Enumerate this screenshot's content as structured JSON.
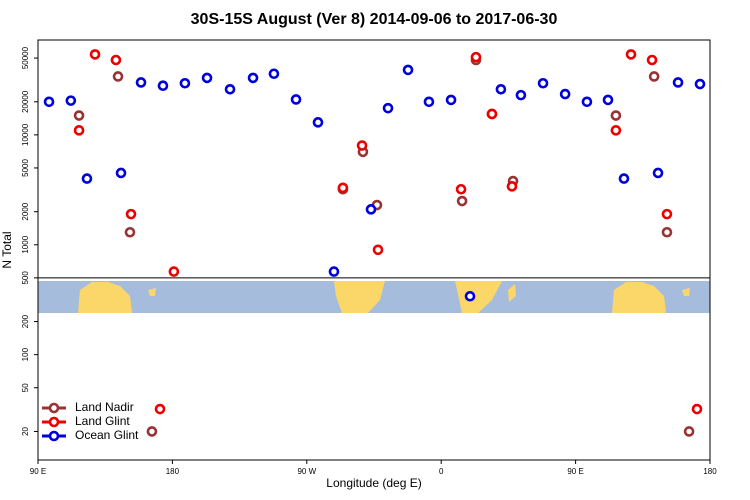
{
  "chart_data": {
    "type": "scatter",
    "title": "30S-15S August (Ver 8)   2014-09-06 to 2017-06-30",
    "x_label": "Longitude (deg E)",
    "y_label": "N Total",
    "log_y": true,
    "legend": "bottom-left",
    "xlim": [
      90,
      540
    ],
    "ylim": [
      11,
      73000
    ],
    "xticks": [
      {
        "value": 90,
        "label": "90 E"
      },
      180,
      {
        "value": 270,
        "label": "90 W"
      },
      {
        "value": 360,
        "label": "0"
      },
      {
        "value": 450,
        "label": "90 E"
      },
      {
        "value": 540,
        "label": "180"
      }
    ],
    "yticks": [
      20,
      50,
      100,
      200,
      500,
      1000,
      2000,
      5000,
      10000,
      20000,
      50000
    ],
    "series": [
      {
        "name": "Land Nadir",
        "color": "#993333",
        "x": [
          117.5,
          143.6,
          151.6,
          166.3,
          294.2,
          307.6,
          317,
          374,
          383.3,
          394,
          408.1,
          477,
          502.6,
          511.2,
          526
        ],
        "values": [
          15000,
          34000,
          1300,
          20,
          3200,
          7000,
          2300,
          2500,
          48000,
          15500,
          3800,
          15000,
          34000,
          1300,
          20
        ]
      },
      {
        "name": "Land Glint",
        "color": "#ee0000",
        "x": [
          117.5,
          128.2,
          142.2,
          152.3,
          171.7,
          181,
          294.2,
          307,
          317.7,
          373.3,
          383.3,
          394,
          407.4,
          477,
          487.1,
          501.2,
          511.2,
          531.3
        ],
        "values": [
          11000,
          54000,
          48000,
          1900,
          32,
          570,
          3300,
          8000,
          900,
          3200,
          51000,
          15500,
          3400,
          11000,
          54000,
          48000,
          1900,
          32
        ]
      },
      {
        "name": "Ocean Glint",
        "color": "#0000dd",
        "x": [
          97.4,
          112,
          122.8,
          145.6,
          159,
          173.7,
          188.4,
          203.2,
          218.6,
          234,
          248,
          262.8,
          277.5,
          288.2,
          313,
          324.4,
          337.8,
          351.8,
          366.6,
          379.3,
          400,
          413.4,
          428.2,
          443,
          457.6,
          471.7,
          482.4,
          505.2,
          518.6,
          533.3
        ],
        "values": [
          20000,
          20500,
          4000,
          4500,
          30000,
          28000,
          29500,
          33000,
          26000,
          33000,
          36000,
          21000,
          13000,
          570,
          2100,
          17500,
          39000,
          20000,
          20800,
          340,
          26000,
          23000,
          29500,
          23500,
          20000,
          20800,
          4000,
          4500,
          30000,
          29000
        ]
      }
    ]
  }
}
